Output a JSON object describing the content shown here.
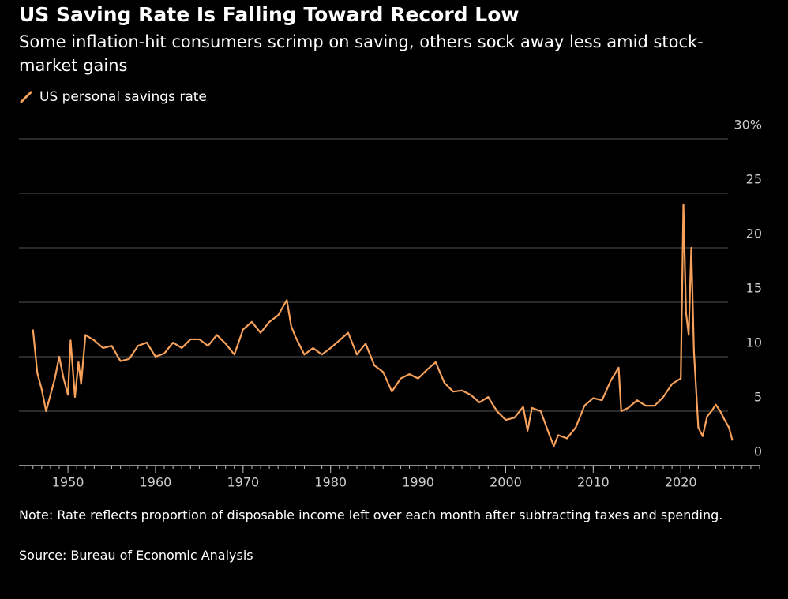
{
  "chart_data": {
    "type": "line",
    "title": "US Saving Rate Is Falling Toward Record Low",
    "subtitle": "Some inflation-hit consumers scrimp on saving, others sock away less amid stock-market gains",
    "note": "Note: Rate reflects proportion of disposable income left over each month after subtracting taxes and spending.",
    "source": "Source: Bureau of Economic Analysis",
    "x": [
      1946.0,
      1946.5,
      1947.0,
      1947.5,
      1948.0,
      1948.5,
      1949.0,
      1949.5,
      1950.0,
      1950.3,
      1950.8,
      1951.2,
      1951.5,
      1952,
      1953,
      1954,
      1955,
      1956,
      1957,
      1958,
      1959,
      1960,
      1961,
      1962,
      1963,
      1964,
      1965,
      1966,
      1967,
      1968,
      1969,
      1970,
      1971,
      1972,
      1973,
      1974,
      1975,
      1975.5,
      1976,
      1977,
      1978,
      1979,
      1980,
      1981,
      1982,
      1983,
      1984,
      1985,
      1986,
      1987,
      1988,
      1989,
      1990,
      1991,
      1992,
      1993,
      1994,
      1995,
      1996,
      1997,
      1998,
      1999,
      2000,
      2001,
      2002,
      2002.5,
      2003,
      2004,
      2005,
      2005.5,
      2006,
      2007,
      2008,
      2008.5,
      2009,
      2010,
      2011,
      2012,
      2012.9,
      2013.2,
      2014,
      2015,
      2016,
      2017,
      2018,
      2019,
      2020.0,
      2020.3,
      2020.6,
      2020.9,
      2021.2,
      2021.5,
      2022,
      2022.5,
      2023,
      2023.5,
      2024,
      2024.5,
      2025,
      2025.5,
      2025.9
    ],
    "series": [
      {
        "name": "US personal savings rate",
        "color": "#f7a15b",
        "values": [
          12.5,
          8.5,
          7,
          5,
          6.5,
          8,
          10,
          8,
          6.5,
          11.5,
          6.3,
          9.5,
          7.5,
          12,
          11.5,
          10.8,
          11,
          9.6,
          9.8,
          11,
          11.3,
          10,
          10.3,
          11.3,
          10.8,
          11.6,
          11.6,
          11,
          12,
          11.2,
          10.2,
          12.5,
          13.2,
          12.2,
          13.2,
          13.8,
          15.2,
          12.8,
          11.8,
          10.2,
          10.8,
          10.2,
          10.8,
          11.5,
          12.2,
          10.2,
          11.2,
          9.2,
          8.6,
          6.8,
          8,
          8.4,
          8,
          8.8,
          9.5,
          7.6,
          6.8,
          6.9,
          6.5,
          5.8,
          6.3,
          5.0,
          4.2,
          4.4,
          5.4,
          3.2,
          5.3,
          5.0,
          2.8,
          1.8,
          2.8,
          2.5,
          3.5,
          4.5,
          5.5,
          6.2,
          6.0,
          7.8,
          9.0,
          5.0,
          5.3,
          6.0,
          5.5,
          5.5,
          6.3,
          7.5,
          8.0,
          24.0,
          14,
          12,
          20,
          10.5,
          3.5,
          2.7,
          4.5,
          5.0,
          5.6,
          5.0,
          4.2,
          3.5,
          2.3
        ]
      }
    ],
    "xlim": [
      1944.4,
      2029
    ],
    "xticks": [
      1950,
      1960,
      1970,
      1980,
      1990,
      2000,
      2010,
      2020
    ],
    "ylim": [
      0,
      30
    ],
    "yticks": [
      0,
      5,
      10,
      15,
      20,
      25,
      {
        "value": 30,
        "label": "30%"
      }
    ],
    "grid": true
  }
}
